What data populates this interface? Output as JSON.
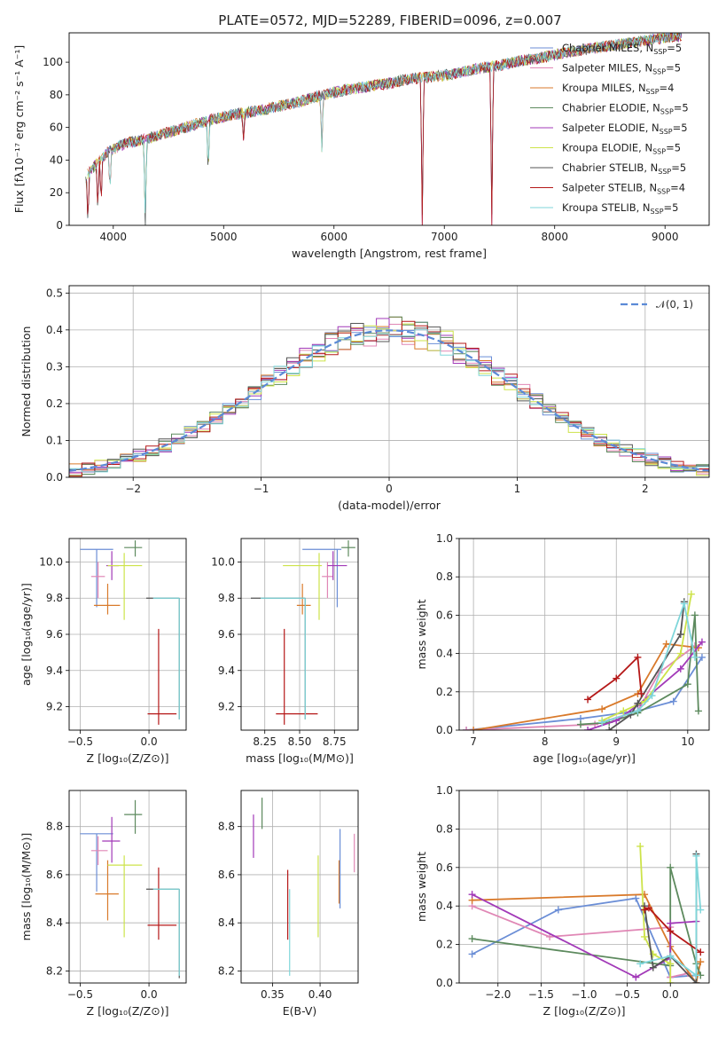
{
  "figure_title": "PLATE=0572, MJD=52289, FIBERID=0096, z=0.007",
  "colors": {
    "Chabrier MILES": "#6b8ed6",
    "Salpeter MILES": "#e087b5",
    "Kroupa MILES": "#d97a2b",
    "Chabrier ELODIE": "#5d8a5e",
    "Salpeter ELODIE": "#a239b8",
    "Kroupa ELODIE": "#cde34a",
    "Chabrier STELIB": "#555555",
    "Salpeter STELIB": "#b51818",
    "Kroupa STELIB": "#7fd6da"
  },
  "chart_data": [
    {
      "id": "spectrum",
      "type": "line",
      "title": "PLATE=0572, MJD=52289, FIBERID=0096, z=0.007",
      "xlabel": "wavelength [Angstrom, rest frame]",
      "ylabel": "Flux [fλ10⁻¹⁷ erg cm⁻² s⁻¹ A⁻¹]",
      "xlim": [
        3600,
        9400
      ],
      "ylim": [
        0,
        118
      ],
      "xticks": [
        4000,
        5000,
        6000,
        7000,
        8000,
        9000
      ],
      "yticks": [
        0,
        20,
        40,
        60,
        80,
        100
      ],
      "grid": false,
      "legend_position": "right",
      "legend": [
        {
          "name": "Chabrier MILES, N",
          "sub": "SSP",
          "tail": "=5"
        },
        {
          "name": "Salpeter MILES, N",
          "sub": "SSP",
          "tail": "=5"
        },
        {
          "name": "Kroupa MILES, N",
          "sub": "SSP",
          "tail": "=4"
        },
        {
          "name": "Chabrier ELODIE, N",
          "sub": "SSP",
          "tail": "=5"
        },
        {
          "name": "Salpeter ELODIE, N",
          "sub": "SSP",
          "tail": "=5"
        },
        {
          "name": "Kroupa ELODIE, N",
          "sub": "SSP",
          "tail": "=5"
        },
        {
          "name": "Chabrier STELIB, N",
          "sub": "SSP",
          "tail": "=5"
        },
        {
          "name": "Salpeter STELIB, N",
          "sub": "SSP",
          "tail": "=4"
        },
        {
          "name": "Kroupa STELIB, N",
          "sub": "SSP",
          "tail": "=5"
        }
      ],
      "continuum": {
        "x": [
          3750,
          3850,
          3950,
          4100,
          4300,
          4500,
          4700,
          4900,
          5100,
          5300,
          5500,
          5700,
          5900,
          6100,
          6300,
          6500,
          6700,
          6900,
          7100,
          7300,
          7500,
          7700,
          7900,
          8100,
          8300,
          8500,
          8700,
          8900,
          9100
        ],
        "y": [
          30,
          38,
          45,
          50,
          53,
          57,
          61,
          65,
          68,
          70,
          73,
          76,
          80,
          83,
          85,
          87,
          90,
          91,
          93,
          96,
          98,
          101,
          103,
          106,
          108,
          110,
          112,
          114,
          116
        ]
      },
      "dips": [
        {
          "x": 3770,
          "y": 0
        },
        {
          "x": 3860,
          "y": 8
        },
        {
          "x": 3890,
          "y": 12
        },
        {
          "x": 3970,
          "y": 20
        },
        {
          "x": 4290,
          "y": 0
        },
        {
          "x": 4860,
          "y": 30
        },
        {
          "x": 5180,
          "y": 52
        },
        {
          "x": 5890,
          "y": 45
        },
        {
          "x": 6800,
          "y": 0
        },
        {
          "x": 7430,
          "y": 0
        }
      ]
    },
    {
      "id": "residuals",
      "type": "line",
      "title": "",
      "xlabel": "(data-model)/error",
      "ylabel": "Normed distribution",
      "xlim": [
        -2.5,
        2.5
      ],
      "ylim": [
        0,
        0.52
      ],
      "xticks": [
        -2,
        -1,
        0,
        1,
        2
      ],
      "yticks": [
        0.0,
        0.1,
        0.2,
        0.3,
        0.4,
        0.5
      ],
      "grid": true,
      "legend_position": "top-right",
      "reference_curve": {
        "name": "𝒩(0, 1)",
        "mean": 0,
        "sigma": 1
      },
      "bin_width": 0.1
    },
    {
      "id": "age_vs_Z",
      "type": "scatter",
      "xlabel": "Z [log₁₀(Z/Z⊙)]",
      "ylabel": "age  [log₁₀(age/yr)]",
      "xlim": [
        -0.58,
        0.27
      ],
      "ylim": [
        9.07,
        10.13
      ],
      "xticks": [
        -0.5,
        0.0
      ],
      "yticks": [
        9.2,
        9.4,
        9.6,
        9.8,
        10.0
      ],
      "grid": true,
      "points": [
        {
          "series": "Chabrier MILES",
          "x": -0.38,
          "y": 10.07,
          "x0": -0.5,
          "x1": -0.26,
          "y0": 9.75,
          "y1": 10.07
        },
        {
          "series": "Salpeter MILES",
          "x": -0.37,
          "y": 9.92,
          "x0": -0.42,
          "x1": -0.32,
          "y0": 9.8,
          "y1": 10.0
        },
        {
          "series": "Kroupa MILES",
          "x": -0.3,
          "y": 9.76,
          "x0": -0.4,
          "x1": -0.21,
          "y0": 9.71,
          "y1": 9.88
        },
        {
          "series": "Chabrier ELODIE",
          "x": -0.1,
          "y": 10.08,
          "x0": -0.18,
          "x1": -0.05,
          "y0": 10.03,
          "y1": 10.12
        },
        {
          "series": "Salpeter ELODIE",
          "x": -0.27,
          "y": 9.98,
          "x0": -0.31,
          "x1": -0.22,
          "y0": 9.9,
          "y1": 10.06
        },
        {
          "series": "Kroupa ELODIE",
          "x": -0.18,
          "y": 9.98,
          "x0": -0.3,
          "x1": -0.05,
          "y0": 9.68,
          "y1": 10.05
        },
        {
          "series": "Chabrier STELIB",
          "x": 0.22,
          "y": 9.8,
          "x0": -0.02,
          "x1": 0.22,
          "y0": 9.13,
          "y1": 9.8
        },
        {
          "series": "Salpeter STELIB",
          "x": 0.07,
          "y": 9.16,
          "x0": -0.01,
          "x1": 0.2,
          "y0": 9.1,
          "y1": 9.63
        },
        {
          "series": "Kroupa STELIB",
          "x": 0.22,
          "y": 9.8,
          "x0": 0.03,
          "x1": 0.22,
          "y0": 9.13,
          "y1": 9.8
        }
      ]
    },
    {
      "id": "age_vs_mass",
      "type": "scatter",
      "xlabel": "mass [log₁₀(M/M⊙)]",
      "ylabel": "",
      "xlim": [
        8.08,
        8.92
      ],
      "ylim": [
        9.07,
        10.13
      ],
      "xticks": [
        8.25,
        8.5,
        8.75
      ],
      "yticks": [
        9.2,
        9.4,
        9.6,
        9.8,
        10.0
      ],
      "grid": true,
      "points": [
        {
          "series": "Chabrier MILES",
          "x": 8.77,
          "y": 10.07,
          "x0": 8.52,
          "x1": 8.8,
          "y0": 9.75,
          "y1": 10.07
        },
        {
          "series": "Salpeter MILES",
          "x": 8.7,
          "y": 9.92,
          "x0": 8.66,
          "x1": 8.74,
          "y0": 9.8,
          "y1": 10.0
        },
        {
          "series": "Kroupa MILES",
          "x": 8.52,
          "y": 9.76,
          "x0": 8.48,
          "x1": 8.58,
          "y0": 9.71,
          "y1": 9.88
        },
        {
          "series": "Chabrier ELODIE",
          "x": 8.85,
          "y": 10.08,
          "x0": 8.8,
          "x1": 8.9,
          "y0": 10.03,
          "y1": 10.12
        },
        {
          "series": "Salpeter ELODIE",
          "x": 8.74,
          "y": 9.98,
          "x0": 8.7,
          "x1": 8.84,
          "y0": 9.9,
          "y1": 10.06
        },
        {
          "series": "Kroupa ELODIE",
          "x": 8.64,
          "y": 9.98,
          "x0": 8.38,
          "x1": 8.66,
          "y0": 9.68,
          "y1": 10.05
        },
        {
          "series": "Chabrier STELIB",
          "x": 8.54,
          "y": 9.8,
          "x0": 8.15,
          "x1": 8.54,
          "y0": 9.13,
          "y1": 9.8
        },
        {
          "series": "Salpeter STELIB",
          "x": 8.39,
          "y": 9.16,
          "x0": 8.33,
          "x1": 8.63,
          "y0": 9.1,
          "y1": 9.63
        },
        {
          "series": "Kroupa STELIB",
          "x": 8.54,
          "y": 9.8,
          "x0": 8.22,
          "x1": 8.54,
          "y0": 9.13,
          "y1": 9.8
        }
      ]
    },
    {
      "id": "weight_vs_age",
      "type": "line",
      "xlabel": "age  [log₁₀(age/yr)]",
      "ylabel": "mass weight",
      "xlim": [
        6.8,
        10.3
      ],
      "ylim": [
        0,
        1
      ],
      "xticks": [
        7,
        8,
        9,
        10
      ],
      "yticks": [
        0.0,
        0.2,
        0.4,
        0.6,
        0.8,
        1.0
      ],
      "grid": true,
      "series": [
        {
          "name": "Chabrier MILES",
          "x": [
            6.9,
            8.5,
            9.3,
            9.8,
            10.2
          ],
          "y": [
            0.0,
            0.06,
            0.1,
            0.15,
            0.38
          ]
        },
        {
          "name": "Salpeter MILES",
          "x": [
            6.9,
            8.7,
            9.3,
            9.6,
            10.1
          ],
          "y": [
            0.0,
            0.03,
            0.1,
            0.3,
            0.44
          ]
        },
        {
          "name": "Kroupa MILES",
          "x": [
            7.0,
            8.8,
            9.3,
            9.7,
            10.15
          ],
          "y": [
            0.0,
            0.11,
            0.19,
            0.45,
            0.43
          ]
        },
        {
          "name": "Chabrier ELODIE",
          "x": [
            8.5,
            8.9,
            9.3,
            10.0,
            10.1,
            10.15
          ],
          "y": [
            0.03,
            0.04,
            0.09,
            0.24,
            0.6,
            0.1
          ]
        },
        {
          "name": "Salpeter ELODIE",
          "x": [
            8.6,
            9.0,
            9.3,
            9.9,
            10.2
          ],
          "y": [
            0.0,
            0.05,
            0.13,
            0.32,
            0.46
          ]
        },
        {
          "name": "Kroupa ELODIE",
          "x": [
            8.8,
            9.1,
            9.4,
            9.9,
            10.05
          ],
          "y": [
            0.05,
            0.1,
            0.15,
            0.4,
            0.71
          ]
        },
        {
          "name": "Chabrier STELIB",
          "x": [
            8.9,
            9.2,
            9.3,
            9.9,
            9.95
          ],
          "y": [
            0.0,
            0.08,
            0.14,
            0.5,
            0.67
          ]
        },
        {
          "name": "Salpeter STELIB",
          "x": [
            8.6,
            9.0,
            9.3,
            9.35
          ],
          "y": [
            0.16,
            0.27,
            0.38,
            0.19
          ]
        },
        {
          "name": "Kroupa STELIB",
          "x": [
            8.8,
            9.3,
            9.5,
            9.95,
            10.1
          ],
          "y": [
            0.04,
            0.1,
            0.18,
            0.66,
            0.38
          ]
        }
      ]
    },
    {
      "id": "mass_vs_Z",
      "type": "scatter",
      "xlabel": "Z [log₁₀(Z/Z⊙)]",
      "ylabel": "mass [log₁₀(M/M⊙)]",
      "xlim": [
        -0.58,
        0.27
      ],
      "ylim": [
        8.15,
        8.95
      ],
      "xticks": [
        -0.5,
        0.0
      ],
      "yticks": [
        8.2,
        8.4,
        8.6,
        8.8
      ],
      "grid": true,
      "points": [
        {
          "series": "Chabrier MILES",
          "x": -0.38,
          "y": 8.77,
          "x0": -0.5,
          "x1": -0.26,
          "y0": 8.53,
          "y1": 8.77
        },
        {
          "series": "Salpeter MILES",
          "x": -0.37,
          "y": 8.7,
          "x0": -0.42,
          "x1": -0.3,
          "y0": 8.64,
          "y1": 8.76
        },
        {
          "series": "Kroupa MILES",
          "x": -0.3,
          "y": 8.52,
          "x0": -0.39,
          "x1": -0.22,
          "y0": 8.41,
          "y1": 8.66
        },
        {
          "series": "Chabrier ELODIE",
          "x": -0.1,
          "y": 8.85,
          "x0": -0.18,
          "x1": -0.05,
          "y0": 8.77,
          "y1": 8.91
        },
        {
          "series": "Salpeter ELODIE",
          "x": -0.27,
          "y": 8.74,
          "x0": -0.34,
          "x1": -0.21,
          "y0": 8.65,
          "y1": 8.84
        },
        {
          "series": "Kroupa ELODIE",
          "x": -0.18,
          "y": 8.64,
          "x0": -0.3,
          "x1": -0.05,
          "y0": 8.34,
          "y1": 8.68
        },
        {
          "series": "Chabrier STELIB",
          "x": 0.22,
          "y": 8.54,
          "x0": -0.02,
          "x1": 0.22,
          "y0": 8.17,
          "y1": 8.54
        },
        {
          "series": "Salpeter STELIB",
          "x": 0.07,
          "y": 8.39,
          "x0": -0.01,
          "x1": 0.2,
          "y0": 8.33,
          "y1": 8.63
        },
        {
          "series": "Kroupa STELIB",
          "x": 0.22,
          "y": 8.54,
          "x0": 0.03,
          "x1": 0.22,
          "y0": 8.18,
          "y1": 8.54
        }
      ]
    },
    {
      "id": "mass_vs_ebv",
      "type": "scatter",
      "xlabel": "E(B-V)",
      "ylabel": "",
      "xlim": [
        0.317,
        0.44
      ],
      "ylim": [
        8.15,
        8.95
      ],
      "xticks": [
        0.35,
        0.4
      ],
      "yticks": [
        8.2,
        8.4,
        8.6,
        8.8
      ],
      "grid": true,
      "points": [
        {
          "series": "Salpeter ELODIE",
          "x": 0.33,
          "y": 8.76,
          "y0": 8.67,
          "y1": 8.85
        },
        {
          "series": "Chabrier ELODIE",
          "x": 0.339,
          "y": 8.85,
          "y0": 8.79,
          "y1": 8.92
        },
        {
          "series": "Salpeter STELIB",
          "x": 0.366,
          "y": 8.47,
          "y0": 8.33,
          "y1": 8.62
        },
        {
          "series": "Kroupa STELIB",
          "x": 0.368,
          "y": 8.36,
          "y0": 8.18,
          "y1": 8.54
        },
        {
          "series": "Kroupa ELODIE",
          "x": 0.398,
          "y": 8.51,
          "y0": 8.34,
          "y1": 8.68
        },
        {
          "series": "Kroupa MILES",
          "x": 0.42,
          "y": 8.56,
          "y0": 8.48,
          "y1": 8.66
        },
        {
          "series": "Chabrier MILES",
          "x": 0.421,
          "y": 8.62,
          "y0": 8.46,
          "y1": 8.79
        },
        {
          "series": "Salpeter MILES",
          "x": 0.436,
          "y": 8.68,
          "y0": 8.61,
          "y1": 8.77
        }
      ]
    },
    {
      "id": "weight_vs_Z",
      "type": "line",
      "xlabel": "Z [log₁₀(Z/Z⊙)]",
      "ylabel": "mass weight",
      "xlim": [
        -2.45,
        0.45
      ],
      "ylim": [
        0,
        1
      ],
      "xticks": [
        -2.0,
        -1.5,
        -1.0,
        -0.5,
        0.0
      ],
      "yticks": [
        0.0,
        0.2,
        0.4,
        0.6,
        0.8,
        1.0
      ],
      "grid": true,
      "series": [
        {
          "name": "Chabrier MILES",
          "x": [
            -2.3,
            -1.3,
            -0.4,
            0.0,
            0.3
          ],
          "y": [
            0.15,
            0.38,
            0.44,
            0.03,
            0.04
          ]
        },
        {
          "name": "Salpeter MILES",
          "x": [
            -2.3,
            -1.4,
            0.0,
            0.0,
            0.2
          ],
          "y": [
            0.4,
            0.24,
            0.29,
            0.03,
            0.05
          ]
        },
        {
          "name": "Kroupa MILES",
          "x": [
            -2.3,
            -0.3,
            0.0,
            0.3,
            0.35
          ],
          "y": [
            0.43,
            0.46,
            0.19,
            0.0,
            0.11
          ]
        },
        {
          "name": "Chabrier ELODIE",
          "x": [
            -2.3,
            0.0,
            0.0,
            0.3,
            0.35
          ],
          "y": [
            0.23,
            0.09,
            0.6,
            0.1,
            0.04
          ]
        },
        {
          "name": "Salpeter ELODIE",
          "x": [
            -2.3,
            -0.4,
            0.0,
            0.0,
            0.3
          ],
          "y": [
            0.46,
            0.03,
            0.13,
            0.31,
            0.32
          ]
        },
        {
          "name": "Kroupa ELODIE",
          "x": [
            -0.35,
            -0.3,
            -0.2,
            0.0,
            0.0
          ],
          "y": [
            0.71,
            0.24,
            0.15,
            0.1,
            0.0
          ]
        },
        {
          "name": "Chabrier STELIB",
          "x": [
            -0.3,
            -0.2,
            0.0,
            0.3,
            0.3
          ],
          "y": [
            0.4,
            0.08,
            0.14,
            0.0,
            0.67
          ]
        },
        {
          "name": "Salpeter STELIB",
          "x": [
            -0.3,
            -0.25,
            0.0,
            0.35
          ],
          "y": [
            0.38,
            0.39,
            0.27,
            0.16
          ]
        },
        {
          "name": "Kroupa STELIB",
          "x": [
            -0.35,
            0.0,
            0.3,
            0.3,
            0.35
          ],
          "y": [
            0.1,
            0.14,
            0.04,
            0.66,
            0.38
          ]
        }
      ]
    }
  ]
}
